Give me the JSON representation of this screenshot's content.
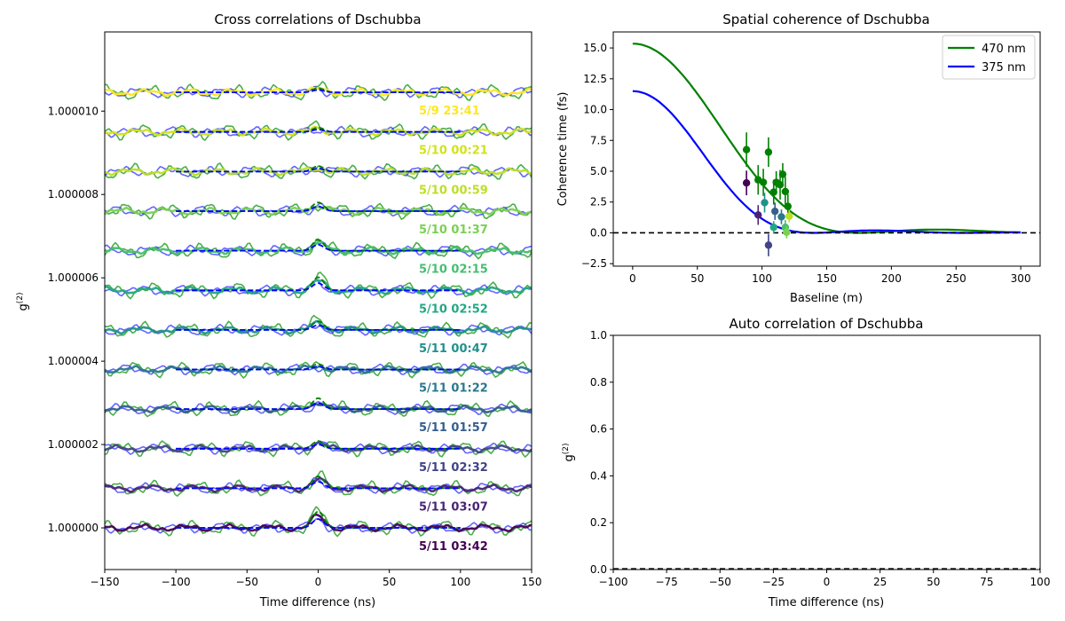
{
  "chart_data": [
    {
      "id": "cross",
      "type": "line",
      "title": "Cross correlations of Dschubba",
      "xlabel": "Time difference (ns)",
      "ylabel": "g(2)",
      "ylabel_main": "g",
      "ylabel_sup": "(2)",
      "xlim": [
        -150,
        150
      ],
      "ylim": [
        0.999999,
        1.0000119
      ],
      "xticks": [
        -150,
        -100,
        -50,
        0,
        50,
        100,
        150
      ],
      "xtick_labels": [
        "−150",
        "−100",
        "−50",
        "0",
        "50",
        "100",
        "150"
      ],
      "yticks": [
        1.0,
        1.000002,
        1.000004,
        1.000006,
        1.000008,
        1.00001
      ],
      "ytick_labels": [
        "1.000000",
        "1.000002",
        "1.000004",
        "1.000006",
        "1.000008",
        "1.000010"
      ],
      "offset_step": 9.5e-07,
      "series": [
        {
          "label": "5/11 03:42",
          "color": "#440154",
          "offset_index": 0
        },
        {
          "label": "5/11 03:07",
          "color": "#482475",
          "offset_index": 1
        },
        {
          "label": "5/11 02:32",
          "color": "#414487",
          "offset_index": 2
        },
        {
          "label": "5/11 01:57",
          "color": "#355f8d",
          "offset_index": 3
        },
        {
          "label": "5/11 01:22",
          "color": "#2a788e",
          "offset_index": 4
        },
        {
          "label": "5/11 00:47",
          "color": "#21918c",
          "offset_index": 5
        },
        {
          "label": "5/10 02:52",
          "color": "#22a884",
          "offset_index": 6
        },
        {
          "label": "5/10 02:15",
          "color": "#44bf70",
          "offset_index": 7
        },
        {
          "label": "5/10 01:37",
          "color": "#7ad151",
          "offset_index": 8
        },
        {
          "label": "5/10 00:59",
          "color": "#bddf26",
          "offset_index": 9
        },
        {
          "label": "5/10 00:21",
          "color": "#d2e21b",
          "offset_index": 10
        },
        {
          "label": "5/9 23:41",
          "color": "#fde725",
          "offset_index": 11
        }
      ],
      "peak_amplitudes_470nm": [
        0.75,
        0.55,
        0.35,
        0.5,
        0.25,
        0.4,
        0.6,
        0.5,
        0.4,
        0.25,
        0.2,
        0.2
      ],
      "colors": {
        "fit_470": "#008000",
        "fit_375": "#0000ff",
        "data_470": "#2ca02c",
        "data_375": "#3333ff"
      }
    },
    {
      "id": "spatial",
      "type": "scatter",
      "title": "Spatial coherence of Dschubba",
      "xlabel": "Baseline (m)",
      "ylabel": "Coherence time (fs)",
      "xlim": [
        -15,
        315
      ],
      "ylim": [
        -2.7,
        16.3
      ],
      "xticks": [
        0,
        50,
        100,
        150,
        200,
        250,
        300
      ],
      "yticks": [
        -2.5,
        0,
        2.5,
        5,
        7.5,
        10,
        12.5,
        15
      ],
      "ytick_labels": [
        "−2.5",
        "0.0",
        "2.5",
        "5.0",
        "7.5",
        "10.0",
        "12.5",
        "15.0"
      ],
      "legend_position": "top-right",
      "series": [
        {
          "name": "470 nm",
          "color": "#008000",
          "amplitude": 15.35,
          "first_zero_m": 175
        },
        {
          "name": "375 nm",
          "color": "#0000ff",
          "amplitude": 11.5,
          "first_zero_m": 140
        }
      ],
      "points_470": [
        {
          "x": 88,
          "y": 6.75,
          "err": 1.4
        },
        {
          "x": 97,
          "y": 4.3,
          "err": 1.2
        },
        {
          "x": 101,
          "y": 4.1,
          "err": 1.1
        },
        {
          "x": 105,
          "y": 6.55,
          "err": 1.2
        },
        {
          "x": 109,
          "y": 3.3,
          "err": 1.0
        },
        {
          "x": 111,
          "y": 4.1,
          "err": 0.9
        },
        {
          "x": 114,
          "y": 3.9,
          "err": 1.2
        },
        {
          "x": 116,
          "y": 4.75,
          "err": 0.9
        },
        {
          "x": 118,
          "y": 3.35,
          "err": 1.2
        },
        {
          "x": 120,
          "y": 2.15,
          "err": 1.0
        }
      ],
      "points_375": [
        {
          "x": 88,
          "y": 4.05,
          "err": 1.0,
          "color": "#440154"
        },
        {
          "x": 97,
          "y": 1.45,
          "err": 0.8,
          "color": "#482475"
        },
        {
          "x": 105,
          "y": -1.0,
          "err": 0.9,
          "color": "#414487"
        },
        {
          "x": 102,
          "y": 2.45,
          "err": 0.8,
          "color": "#21918c"
        },
        {
          "x": 110,
          "y": 1.75,
          "err": 0.7,
          "color": "#355f8d"
        },
        {
          "x": 115,
          "y": 1.3,
          "err": 0.6,
          "color": "#2a788e"
        },
        {
          "x": 109,
          "y": 0.45,
          "err": 0.5,
          "color": "#22a884"
        },
        {
          "x": 118,
          "y": 0.45,
          "err": 0.6,
          "color": "#44bf70"
        },
        {
          "x": 119,
          "y": 0.05,
          "err": 0.5,
          "color": "#7ad151"
        },
        {
          "x": 121,
          "y": 1.35,
          "err": 0.5,
          "color": "#bddf26"
        }
      ]
    },
    {
      "id": "auto",
      "type": "line",
      "title": "Auto correlation of Dschubba",
      "xlabel": "Time difference (ns)",
      "ylabel": "g(2)",
      "ylabel_main": "g",
      "ylabel_sup": "(2)",
      "xlim": [
        -100,
        100
      ],
      "ylim": [
        0,
        1
      ],
      "xticks": [
        -100,
        -75,
        -50,
        -25,
        0,
        25,
        50,
        75,
        100
      ],
      "xtick_labels": [
        "−100",
        "−75",
        "−50",
        "−25",
        "0",
        "25",
        "50",
        "75",
        "100"
      ],
      "yticks": [
        0,
        0.2,
        0.4,
        0.6,
        0.8,
        1.0
      ],
      "ytick_labels": [
        "0.0",
        "0.2",
        "0.4",
        "0.6",
        "0.8",
        "1.0"
      ],
      "series": []
    }
  ]
}
